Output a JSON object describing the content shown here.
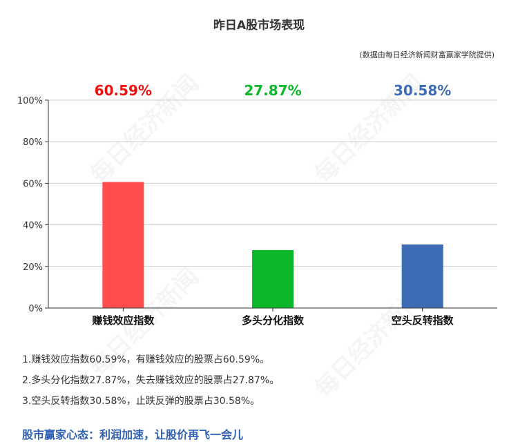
{
  "header": {
    "title": "昨日A股市场表现",
    "source": "(数据由每日经济新闻财富赢家学院提供)"
  },
  "watermark": "每日经济新闻",
  "chart_data": {
    "type": "bar",
    "categories": [
      "赚钱效应指数",
      "多头分化指数",
      "空头反转指数"
    ],
    "values": [
      60.59,
      27.87,
      30.58
    ],
    "value_labels": [
      "60.59%",
      "27.87%",
      "30.58%"
    ],
    "colors": [
      "#ff4d4d",
      "#0ab82a",
      "#3f6db5"
    ],
    "label_colors": [
      "#ee1111",
      "#0ab82a",
      "#3f6db5"
    ],
    "ylim": [
      0,
      100
    ],
    "yticks": [
      0,
      20,
      40,
      60,
      80,
      100
    ],
    "ytick_labels": [
      "0%",
      "20%",
      "40%",
      "60%",
      "80%",
      "100%"
    ],
    "grid": true
  },
  "notes": [
    "1.赚钱效应指数60.59%，有赚钱效应的股票占60.59%。",
    "2.多头分化指数27.87%，失去赚钱效应的股票占27.87%。",
    "3.空头反转指数30.58%，止跌反弹的股票占30.58%。"
  ],
  "slogan": "股市赢家心态：利润加速，让股价再飞一会儿"
}
